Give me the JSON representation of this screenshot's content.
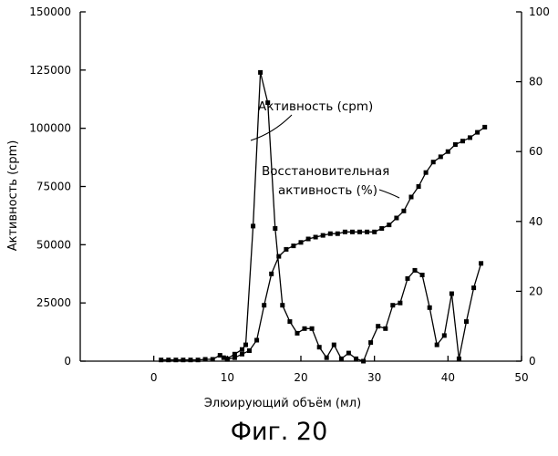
{
  "chart_data": {
    "type": "line",
    "xlabel": "Элюирующий объём (мл)",
    "ylabel": "Активность (cpm)",
    "y2label": "",
    "xlim": [
      -10,
      50
    ],
    "ylim": [
      0,
      150000
    ],
    "y2lim": [
      0,
      100
    ],
    "x_ticks": [
      0,
      10,
      20,
      30,
      40,
      50
    ],
    "y_ticks": [
      0,
      25000,
      50000,
      75000,
      100000,
      125000,
      150000
    ],
    "y2_ticks": [
      0,
      20,
      40,
      60,
      80,
      100
    ],
    "x_tick_labels": [
      "0",
      "10",
      "20",
      "30",
      "40",
      "50"
    ],
    "y_tick_labels": [
      "0",
      "25000",
      "50000",
      "75000",
      "100000",
      "125000",
      "150000"
    ],
    "y2_tick_labels": [
      "0",
      "20",
      "40",
      "60",
      "80",
      "100"
    ],
    "series": [
      {
        "name": "Активность (cpm)",
        "axis": "left",
        "color": "#000000",
        "x": [
          1,
          2,
          3,
          4,
          5,
          6,
          7,
          8,
          9,
          9.5,
          10,
          11,
          12,
          12.5,
          13.5,
          14.5,
          15.5,
          16.5,
          17.5,
          18.5,
          19.5,
          20.5,
          21.5,
          22.5,
          23.5,
          24.5,
          25.5,
          26.5,
          27.5,
          28.5,
          29.5,
          30.5,
          31.5,
          32.5,
          33.5,
          34.5,
          35.5,
          36.5,
          37.5,
          38.5,
          39.5,
          40.5,
          41.5,
          42.5,
          43.5,
          44.5
        ],
        "y": [
          500,
          500,
          500,
          500,
          500,
          500,
          800,
          800,
          2500,
          1500,
          1000,
          3000,
          5000,
          7000,
          58000,
          124000,
          111000,
          57000,
          24000,
          17000,
          12000,
          14000,
          14000,
          6000,
          1500,
          7000,
          1000,
          3500,
          1000,
          0,
          8000,
          15000,
          14000,
          24000,
          25000,
          35500,
          39000,
          37000,
          23000,
          7000,
          11000,
          29000,
          1000,
          17000,
          31500,
          42000
        ]
      },
      {
        "name": "Восстановительная\nактивность (%)",
        "axis": "right",
        "color": "#000000",
        "x": [
          10,
          11,
          12,
          13,
          14,
          15,
          16,
          17,
          18,
          19,
          20,
          21,
          22,
          23,
          24,
          25,
          26,
          27,
          28,
          29,
          30,
          31,
          32,
          33,
          34,
          35,
          36,
          37,
          38,
          39,
          40,
          41,
          42,
          43,
          44,
          45
        ],
        "y": [
          0.5,
          1,
          2,
          3,
          6,
          16,
          25,
          30,
          32,
          33,
          34,
          35,
          35.5,
          36,
          36.5,
          36.5,
          37,
          37,
          37,
          37,
          37,
          38,
          39,
          41,
          43,
          47,
          50,
          54,
          57,
          58.5,
          60,
          62,
          63,
          64,
          65.5,
          67
        ]
      }
    ],
    "annotations": [
      {
        "text": "Активность (cpm)",
        "x": 16.2,
        "y": 117000
      },
      {
        "text": "Восстановительная",
        "x": 31.5,
        "y": 62000,
        "axis": "right"
      },
      {
        "text": "активность (%)",
        "x": 31.5,
        "y": 58000,
        "axis": "right"
      }
    ],
    "legend": "none",
    "grid": false
  },
  "caption": "Фиг. 20"
}
